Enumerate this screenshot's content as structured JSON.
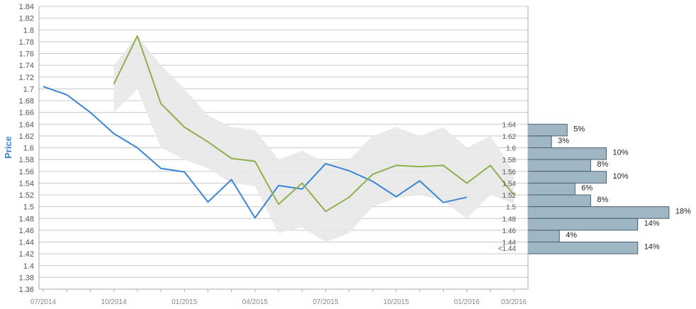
{
  "chart_data": {
    "type": "line",
    "ylabel": "Price",
    "ylim": [
      1.36,
      1.84
    ],
    "y_ticks": [
      "1.84",
      "1.82",
      "1.8",
      "1.78",
      "1.76",
      "1.74",
      "1.72",
      "1.7",
      "1.68",
      "1.66",
      "1.64",
      "1.62",
      "1.6",
      "1.58",
      "1.56",
      "1.54",
      "1.52",
      "1.5",
      "1.48",
      "1.46",
      "1.44",
      "1.42",
      "1.4",
      "1.38",
      "1.36"
    ],
    "x_ticks": [
      "07/2014",
      "10/2014",
      "01/2015",
      "04/2015",
      "07/2015",
      "10/2015",
      "01/2016",
      "03/2016"
    ],
    "grid": true,
    "series": [
      {
        "color": "#3a86d4",
        "x": [
          "2014-07",
          "2014-08",
          "2014-09",
          "2014-10",
          "2014-11",
          "2014-12",
          "2015-01",
          "2015-02",
          "2015-03",
          "2015-04",
          "2015-05",
          "2015-06",
          "2015-07",
          "2015-08",
          "2015-09",
          "2015-10",
          "2015-11",
          "2015-12",
          "2016-01"
        ],
        "values": [
          1.704,
          1.69,
          1.66,
          1.624,
          1.6,
          1.565,
          1.559,
          1.508,
          1.546,
          1.481,
          1.536,
          1.53,
          1.573,
          1.561,
          1.543,
          1.517,
          1.544,
          1.507,
          1.516
        ]
      },
      {
        "color": "#8db04c",
        "x": [
          "2014-10",
          "2014-11",
          "2014-12",
          "2015-01",
          "2015-02",
          "2015-03",
          "2015-04",
          "2015-05",
          "2015-06",
          "2015-07",
          "2015-08",
          "2015-09",
          "2015-10",
          "2015-11",
          "2015-12",
          "2016-01",
          "2016-02",
          "2016-03"
        ],
        "values": [
          1.708,
          1.79,
          1.675,
          1.635,
          1.61,
          1.582,
          1.577,
          1.504,
          1.54,
          1.492,
          1.516,
          1.555,
          1.57,
          1.568,
          1.57,
          1.54,
          1.57,
          1.52
        ]
      }
    ],
    "band": {
      "color": "#e8e8e8",
      "x": [
        "2014-10",
        "2014-11",
        "2014-12",
        "2015-01",
        "2015-02",
        "2015-03",
        "2015-04",
        "2015-05",
        "2015-06",
        "2015-07",
        "2015-08",
        "2015-09",
        "2015-10",
        "2015-11",
        "2015-12",
        "2016-01",
        "2016-02",
        "2016-03"
      ],
      "upper": [
        1.74,
        1.79,
        1.74,
        1.7,
        1.655,
        1.635,
        1.63,
        1.58,
        1.595,
        1.575,
        1.58,
        1.62,
        1.635,
        1.62,
        1.635,
        1.6,
        1.62,
        1.56
      ],
      "lower": [
        1.66,
        1.7,
        1.6,
        1.58,
        1.565,
        1.54,
        1.535,
        1.455,
        1.465,
        1.44,
        1.455,
        1.5,
        1.515,
        1.52,
        1.51,
        1.48,
        1.52,
        1.505
      ]
    },
    "histogram": {
      "color": "#9fb7c4",
      "bins": [
        {
          "label": "1.64",
          "value": 1.64,
          "percent": 5,
          "percent_label": "5%"
        },
        {
          "label": "1.62",
          "value": 1.62,
          "percent": 3,
          "percent_label": "3%"
        },
        {
          "label": "1.6",
          "value": 1.6,
          "percent": 10,
          "percent_label": "10%"
        },
        {
          "label": "1.58",
          "value": 1.58,
          "percent": 8,
          "percent_label": "8%"
        },
        {
          "label": "1.56",
          "value": 1.56,
          "percent": 10,
          "percent_label": "10%"
        },
        {
          "label": "1.54",
          "value": 1.54,
          "percent": 6,
          "percent_label": "6%"
        },
        {
          "label": "1.52",
          "value": 1.52,
          "percent": 8,
          "percent_label": "8%"
        },
        {
          "label": "1.5",
          "value": 1.5,
          "percent": 18,
          "percent_label": "18%"
        },
        {
          "label": "1.48",
          "value": 1.48,
          "percent": 14,
          "percent_label": "14%"
        },
        {
          "label": "1.46",
          "value": 1.46,
          "percent": 4,
          "percent_label": "4%"
        },
        {
          "label": "1.44",
          "value": 1.44,
          "percent": 14,
          "percent_label": "14%"
        },
        {
          "label": "<1.44",
          "value": 1.43,
          "percent": null,
          "percent_label": ""
        }
      ]
    }
  },
  "colors": {
    "axis_label": "#3a86d4",
    "grid": "#c8c8c8",
    "axis": "#aaaaaa"
  }
}
